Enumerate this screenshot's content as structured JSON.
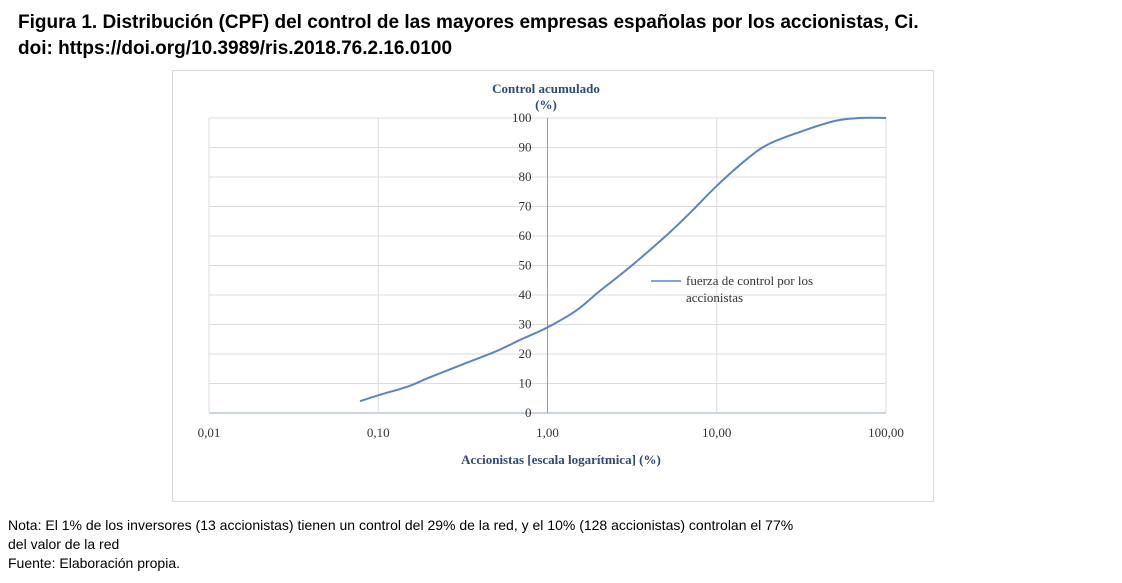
{
  "figure": {
    "title_line1": "Figura 1. Distribución (CPF) del control de las mayores empresas españolas por los accionistas, Ci.",
    "title_line2": "doi: https://doi.org/10.3989/ris.2018.76.2.16.0100"
  },
  "notes": {
    "line1": "Nota: El 1% de los inversores (13 accionistas) tienen un control del 29% de la red, y el 10% (128 accionistas) controlan el 77%",
    "line2": "del valor de la red",
    "line3": "Fuente: Elaboración propia."
  },
  "chart_data": {
    "type": "line",
    "ylabel_line1": "Control acumulado",
    "ylabel_line2": "(%)",
    "xlabel": "Accionistas [escala logarítmica] (%)",
    "x_scale": "log",
    "xlim": [
      0.01,
      100
    ],
    "ylim": [
      0,
      100
    ],
    "x_ticks": [
      0.01,
      0.1,
      1,
      10,
      100
    ],
    "x_tick_labels": [
      "0,01",
      "0,10",
      "1,00",
      "10,00",
      "100,00"
    ],
    "y_ticks": [
      0,
      10,
      20,
      30,
      40,
      50,
      60,
      70,
      80,
      90,
      100
    ],
    "y_tick_labels": [
      "0",
      "10",
      "20",
      "30",
      "40",
      "50",
      "60",
      "70",
      "80",
      "90",
      "100"
    ],
    "grid": true,
    "legend_position": "right",
    "series_color": "#5b84c4",
    "series": [
      {
        "name": "fuerza de control por los accionistas",
        "x": [
          0.078,
          0.1,
          0.15,
          0.2,
          0.3,
          0.5,
          0.7,
          1,
          1.5,
          2,
          3,
          5,
          7,
          10,
          15,
          20,
          30,
          50,
          70,
          100
        ],
        "y": [
          4,
          6,
          9,
          12,
          16,
          21,
          25,
          29,
          35,
          41,
          49,
          60,
          68,
          77,
          86,
          91,
          95,
          99,
          100,
          100
        ]
      }
    ],
    "legend_line1": "fuerza de control por los",
    "legend_line2": "accionistas"
  }
}
